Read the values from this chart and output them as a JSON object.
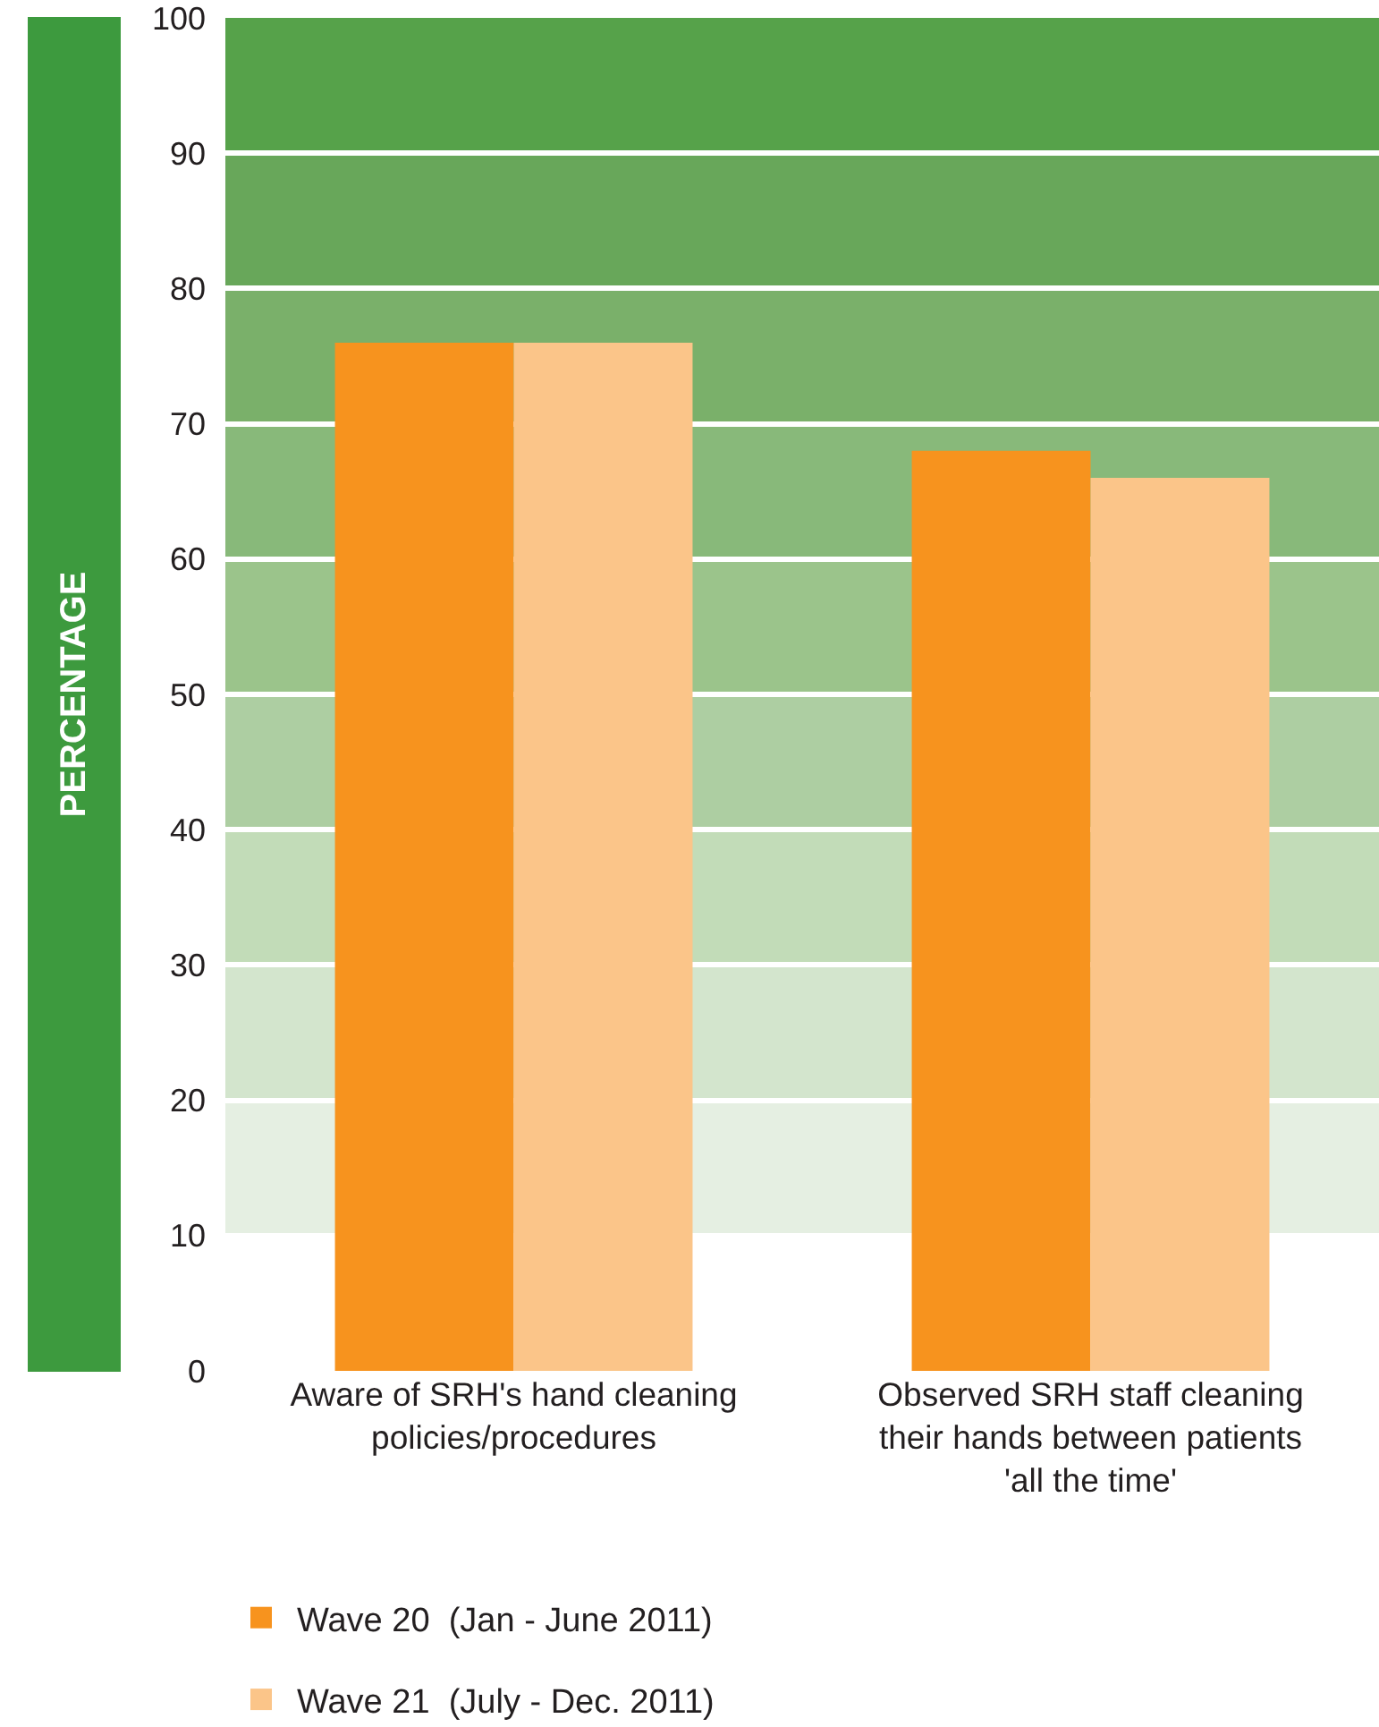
{
  "chart_data": {
    "type": "bar",
    "ylabel": "PERCENTAGE",
    "categories": [
      "Aware of SRH's hand cleaning policies/procedures",
      "Observed SRH staff cleaning their hands between patients 'all the time'"
    ],
    "series": [
      {
        "name": "Wave 20  (Jan - June 2011)",
        "color": "#f7931e",
        "values": [
          76,
          68
        ]
      },
      {
        "name": "Wave 21  (July - Dec. 2011)",
        "color": "#fbc589",
        "values": [
          76,
          66
        ]
      }
    ],
    "ylim": [
      0,
      100
    ],
    "yticks": [
      0,
      10,
      20,
      30,
      40,
      50,
      60,
      70,
      80,
      90,
      100
    ],
    "grid": "y",
    "legend": "bottom left",
    "bands": [
      {
        "axis": "y",
        "from": 10,
        "to": 20,
        "color": "#e5efe2"
      },
      {
        "axis": "y",
        "from": 20,
        "to": 30,
        "color": "#d3e5cd"
      },
      {
        "axis": "y",
        "from": 30,
        "to": 40,
        "color": "#c2dcb8"
      },
      {
        "axis": "y",
        "from": 40,
        "to": 50,
        "color": "#adcea2"
      },
      {
        "axis": "y",
        "from": 50,
        "to": 60,
        "color": "#9bc48b"
      },
      {
        "axis": "y",
        "from": 60,
        "to": 70,
        "color": "#88b97a"
      },
      {
        "axis": "y",
        "from": 70,
        "to": 80,
        "color": "#7ab06a"
      },
      {
        "axis": "y",
        "from": 80,
        "to": 90,
        "color": "#68a75a"
      },
      {
        "axis": "y",
        "from": 90,
        "to": 100,
        "color": "#56a24a"
      }
    ]
  }
}
